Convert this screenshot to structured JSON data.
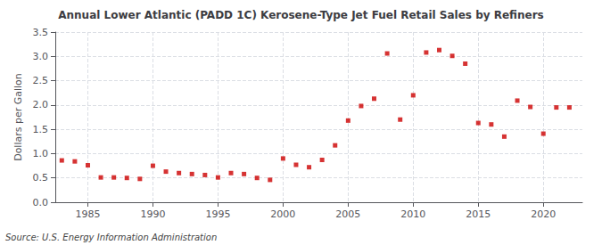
{
  "chart_data": {
    "type": "scatter",
    "title": "Annual Lower Atlantic (PADD 1C) Kerosene-Type Jet Fuel Retail Sales by Refiners",
    "ylabel": "Dollars per Gallon",
    "annotations": [
      "Source: U.S. Energy Information Administration"
    ],
    "x": [
      1983,
      1984,
      1985,
      1986,
      1987,
      1988,
      1989,
      1990,
      1991,
      1992,
      1993,
      1994,
      1995,
      1996,
      1997,
      1998,
      1999,
      2000,
      2001,
      2002,
      2003,
      2004,
      2005,
      2006,
      2007,
      2008,
      2009,
      2010,
      2011,
      2012,
      2013,
      2014,
      2015,
      2016,
      2017,
      2018,
      2019,
      2020,
      2021,
      2022
    ],
    "values": [
      0.86,
      0.84,
      0.76,
      0.51,
      0.51,
      0.5,
      0.48,
      0.75,
      0.63,
      0.6,
      0.58,
      0.56,
      0.51,
      0.6,
      0.58,
      0.5,
      0.46,
      0.9,
      0.77,
      0.72,
      0.87,
      1.17,
      1.68,
      1.98,
      2.13,
      3.06,
      1.7,
      2.2,
      3.08,
      3.13,
      3.01,
      2.85,
      1.63,
      1.6,
      1.35,
      2.09,
      1.96,
      1.41,
      1.95,
      1.95
    ],
    "color": "#cc0000",
    "marker": "square",
    "xlim": [
      1982.5,
      2023
    ],
    "xticks": [
      1985,
      1990,
      1995,
      2000,
      2005,
      2010,
      2015,
      2020
    ],
    "ylim": [
      0.0,
      3.5
    ],
    "yticks": [
      {
        "value": 0,
        "label": "0.0"
      },
      0.5,
      {
        "value": 1,
        "label": "1.0"
      },
      1.5,
      {
        "value": 2,
        "label": "2.0"
      },
      2.5,
      {
        "value": 3,
        "label": "3.0"
      },
      3.5
    ],
    "grid": true
  }
}
